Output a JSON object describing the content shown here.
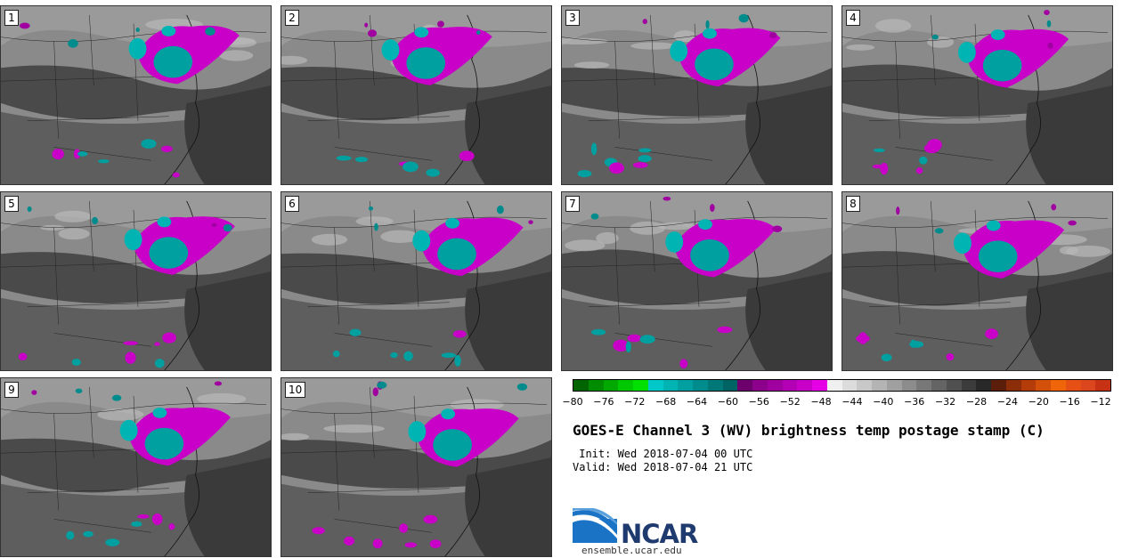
{
  "panels": [
    {
      "label": "1"
    },
    {
      "label": "2"
    },
    {
      "label": "3"
    },
    {
      "label": "4"
    },
    {
      "label": "5"
    },
    {
      "label": "6"
    },
    {
      "label": "7"
    },
    {
      "label": "8"
    },
    {
      "label": "9"
    },
    {
      "label": "10"
    }
  ],
  "colorbar": {
    "colors": [
      "#006400",
      "#008c00",
      "#00a800",
      "#00c800",
      "#00e000",
      "#00c8c8",
      "#00b4b4",
      "#00a0a0",
      "#008c8c",
      "#007878",
      "#006464",
      "#6e006e",
      "#8c008c",
      "#a000a0",
      "#b400b4",
      "#c800c8",
      "#e600e6",
      "#f0f0f0",
      "#dcdcdc",
      "#c8c8c8",
      "#b4b4b4",
      "#a0a0a0",
      "#8c8c8c",
      "#787878",
      "#646464",
      "#505050",
      "#3c3c3c",
      "#282828",
      "#5a1e0a",
      "#8c2d0a",
      "#b43c0a",
      "#d2500a",
      "#f0640a",
      "#e65014",
      "#dc461e",
      "#c83214"
    ],
    "labels": [
      "−80",
      "−76",
      "−72",
      "−68",
      "−64",
      "−60",
      "−56",
      "−52",
      "−48",
      "−44",
      "−40",
      "−36",
      "−32",
      "−28",
      "−24",
      "−20",
      "−16",
      "−12"
    ],
    "min": -80,
    "max": -10
  },
  "title": "GOES-E Channel 3 (WV) brightness temp postage stamp (C)",
  "init": " Init: Wed 2018-07-04 00 UTC",
  "valid": "Valid: Wed 2018-07-04 21 UTC",
  "logo": {
    "text": "NCAR",
    "url": "ensemble.ucar.edu"
  }
}
